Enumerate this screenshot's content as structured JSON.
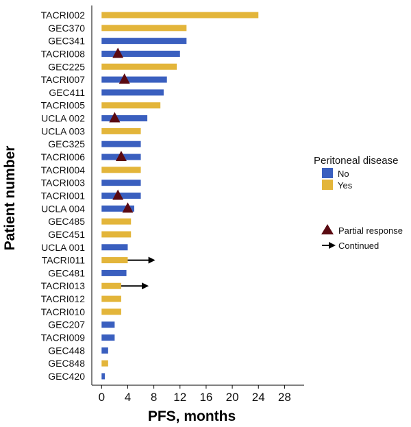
{
  "chart_data": {
    "type": "bar",
    "orientation": "horizontal",
    "xlabel": "PFS, months",
    "ylabel": "Patient number",
    "xlim": [
      -1.5,
      31
    ],
    "xticks": [
      0,
      4,
      8,
      12,
      16,
      20,
      24,
      28
    ],
    "grid": false,
    "legend_position": "right",
    "series_colors": {
      "No": "#3a5fbf",
      "Yes": "#e3b53a"
    },
    "legend": {
      "title": "Peritoneal disease",
      "items": [
        {
          "label": "No",
          "color": "#3a5fbf"
        },
        {
          "label": "Yes",
          "color": "#e3b53a"
        }
      ],
      "markers": [
        {
          "label": "Partial response",
          "symbol": "triangle",
          "color": "#5a0a12"
        },
        {
          "label": "Continued",
          "symbol": "arrow",
          "color": "#000000"
        }
      ]
    },
    "patients": [
      {
        "name": "TACRI002",
        "pfs": 24.0,
        "peritoneal": "Yes",
        "partial_response_at": null,
        "continued": false
      },
      {
        "name": "GEC370",
        "pfs": 13.0,
        "peritoneal": "Yes",
        "partial_response_at": null,
        "continued": false
      },
      {
        "name": "GEC341",
        "pfs": 13.0,
        "peritoneal": "No",
        "partial_response_at": null,
        "continued": false
      },
      {
        "name": "TACRI008",
        "pfs": 12.0,
        "peritoneal": "No",
        "partial_response_at": 2.5,
        "continued": false
      },
      {
        "name": "GEC225",
        "pfs": 11.5,
        "peritoneal": "Yes",
        "partial_response_at": null,
        "continued": false
      },
      {
        "name": "TACRI007",
        "pfs": 10.0,
        "peritoneal": "No",
        "partial_response_at": 3.5,
        "continued": false
      },
      {
        "name": "GEC411",
        "pfs": 9.5,
        "peritoneal": "No",
        "partial_response_at": null,
        "continued": false
      },
      {
        "name": "TACRI005",
        "pfs": 9.0,
        "peritoneal": "Yes",
        "partial_response_at": null,
        "continued": false
      },
      {
        "name": "UCLA 002",
        "pfs": 7.0,
        "peritoneal": "No",
        "partial_response_at": 2.0,
        "continued": false
      },
      {
        "name": "UCLA 003",
        "pfs": 6.0,
        "peritoneal": "Yes",
        "partial_response_at": null,
        "continued": false
      },
      {
        "name": "GEC325",
        "pfs": 6.0,
        "peritoneal": "No",
        "partial_response_at": null,
        "continued": false
      },
      {
        "name": "TACRI006",
        "pfs": 6.0,
        "peritoneal": "No",
        "partial_response_at": 3.0,
        "continued": false
      },
      {
        "name": "TACRI004",
        "pfs": 6.0,
        "peritoneal": "Yes",
        "partial_response_at": null,
        "continued": false
      },
      {
        "name": "TACRI003",
        "pfs": 6.0,
        "peritoneal": "No",
        "partial_response_at": null,
        "continued": false
      },
      {
        "name": "TACRI001",
        "pfs": 6.0,
        "peritoneal": "No",
        "partial_response_at": 2.5,
        "continued": false
      },
      {
        "name": "UCLA 004",
        "pfs": 5.0,
        "peritoneal": "No",
        "partial_response_at": 4.0,
        "continued": false
      },
      {
        "name": "GEC485",
        "pfs": 4.5,
        "peritoneal": "Yes",
        "partial_response_at": null,
        "continued": false
      },
      {
        "name": "GEC451",
        "pfs": 4.5,
        "peritoneal": "Yes",
        "partial_response_at": null,
        "continued": false
      },
      {
        "name": "UCLA 001",
        "pfs": 4.0,
        "peritoneal": "No",
        "partial_response_at": null,
        "continued": false
      },
      {
        "name": "TACRI011",
        "pfs": 4.0,
        "peritoneal": "Yes",
        "partial_response_at": null,
        "continued": true,
        "arrow_to": 8.0
      },
      {
        "name": "GEC481",
        "pfs": 3.8,
        "peritoneal": "No",
        "partial_response_at": null,
        "continued": false
      },
      {
        "name": "TACRI013",
        "pfs": 3.0,
        "peritoneal": "Yes",
        "partial_response_at": null,
        "continued": true,
        "arrow_to": 7.0
      },
      {
        "name": "TACRI012",
        "pfs": 3.0,
        "peritoneal": "Yes",
        "partial_response_at": null,
        "continued": false
      },
      {
        "name": "TACRI010",
        "pfs": 3.0,
        "peritoneal": "Yes",
        "partial_response_at": null,
        "continued": false
      },
      {
        "name": "GEC207",
        "pfs": 2.0,
        "peritoneal": "No",
        "partial_response_at": null,
        "continued": false
      },
      {
        "name": "TACRI009",
        "pfs": 2.0,
        "peritoneal": "No",
        "partial_response_at": null,
        "continued": false
      },
      {
        "name": "GEC448",
        "pfs": 1.0,
        "peritoneal": "No",
        "partial_response_at": null,
        "continued": false
      },
      {
        "name": "GEC848",
        "pfs": 1.0,
        "peritoneal": "Yes",
        "partial_response_at": null,
        "continued": false
      },
      {
        "name": "GEC420",
        "pfs": 0.5,
        "peritoneal": "No",
        "partial_response_at": null,
        "continued": false
      }
    ]
  }
}
